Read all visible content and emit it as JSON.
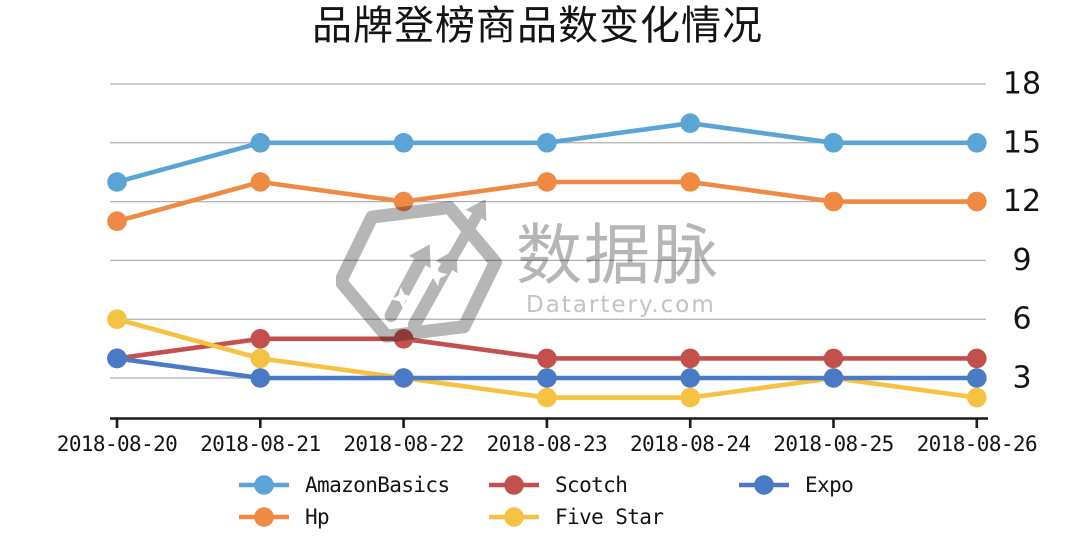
{
  "chart_data": {
    "type": "line",
    "title": "品牌登榜商品数变化情况",
    "xlabel": "",
    "ylabel": "",
    "x_categories": [
      "2018-08-20",
      "2018-08-21",
      "2018-08-22",
      "2018-08-23",
      "2018-08-24",
      "2018-08-25",
      "2018-08-26"
    ],
    "series": [
      {
        "name": "AmazonBasics",
        "color": "#5BA4D6",
        "values": [
          13,
          15,
          15,
          15,
          16,
          15,
          15
        ]
      },
      {
        "name": "Hp",
        "color": "#EF8A45",
        "values": [
          11,
          13,
          12,
          13,
          13,
          12,
          12
        ]
      },
      {
        "name": "Scotch",
        "color": "#C4504E",
        "values": [
          4,
          5,
          5,
          4,
          4,
          4,
          4
        ]
      },
      {
        "name": "Five Star",
        "color": "#F6C242",
        "values": [
          6,
          4,
          3,
          2,
          2,
          3,
          2
        ]
      },
      {
        "name": "Expo",
        "color": "#4A79C5",
        "values": [
          4,
          3,
          3,
          3,
          3,
          3,
          3
        ]
      }
    ],
    "y_ticks": [
      3,
      6,
      9,
      12,
      15,
      18
    ],
    "ylim": [
      1,
      18.6
    ],
    "grid": true,
    "y_axis_side": "right",
    "legend_position": "bottom"
  },
  "watermark": {
    "brand": "数据脉",
    "domain": "Datartery.com"
  },
  "colors": {
    "grid": "#b1b1b1",
    "axis": "#1a1a1a",
    "text": "#141414",
    "watermark_gray": "#b6b6b6"
  }
}
